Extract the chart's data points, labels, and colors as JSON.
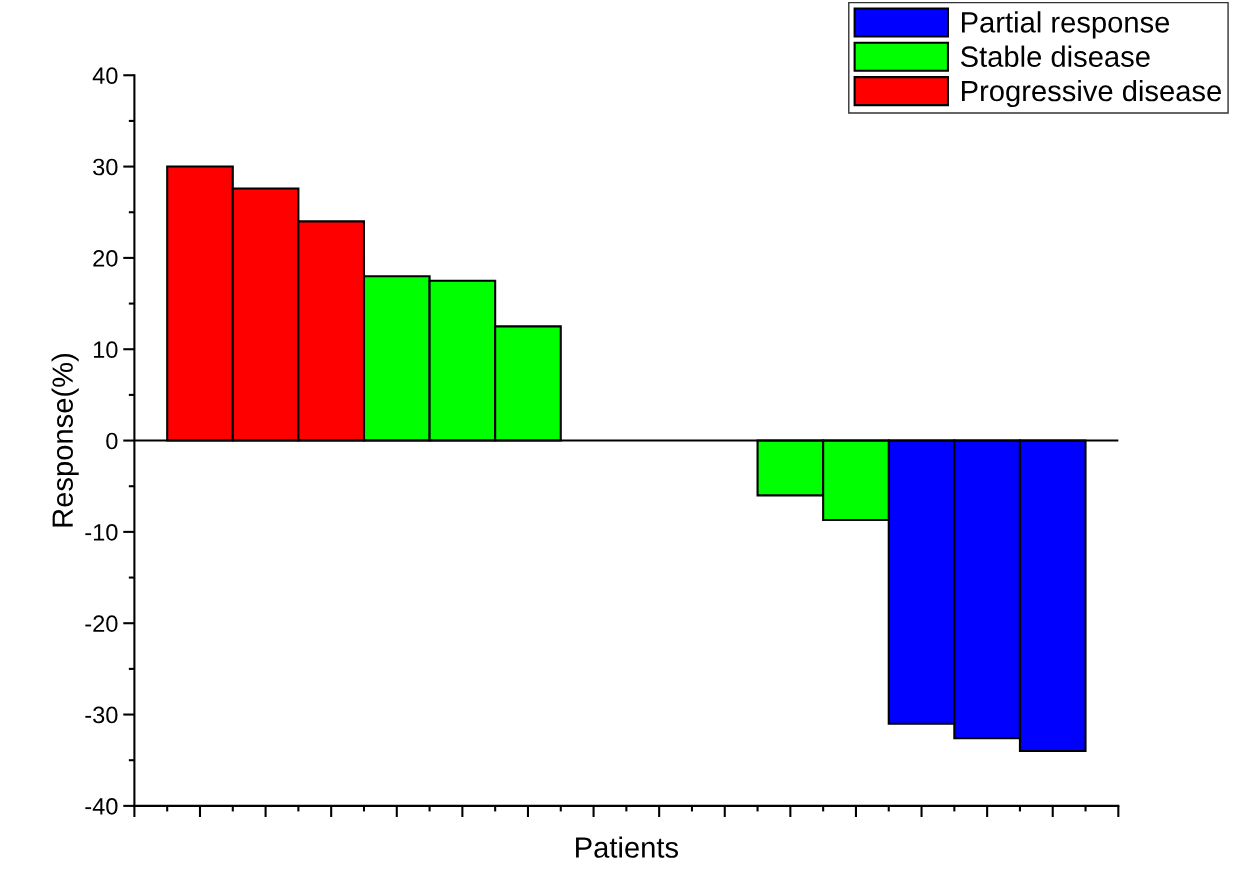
{
  "chart_data": {
    "type": "bar",
    "xlabel": "Patients",
    "ylabel": "Response(%)",
    "categories": [
      null,
      null,
      null,
      null,
      null,
      null,
      null,
      null,
      null,
      null,
      null,
      null,
      null,
      null
    ],
    "series": [
      {
        "name": "Partial response",
        "color": "#0000ff",
        "values": [
          null,
          null,
          null,
          null,
          null,
          null,
          null,
          null,
          null,
          null,
          null,
          -31,
          -32.6,
          -34
        ]
      },
      {
        "name": "Stable disease",
        "color": "#00ff00",
        "values": [
          null,
          null,
          null,
          18,
          17.5,
          12.5,
          null,
          null,
          null,
          -6,
          -8.7,
          null,
          null,
          null
        ]
      },
      {
        "name": "Progressive disease",
        "color": "#ff0000",
        "values": [
          30,
          27.6,
          24,
          null,
          null,
          null,
          null,
          null,
          null,
          null,
          null,
          null,
          null,
          null
        ]
      }
    ],
    "ylim": [
      -40,
      40
    ],
    "yticks": [
      -40,
      -30,
      -20,
      -10,
      0,
      10,
      20,
      30,
      40
    ],
    "ref_lines": [
      {
        "axis": "y",
        "value": 0,
        "color": "#000000"
      }
    ],
    "tick_labels": "y",
    "legend": "top right",
    "grid": false
  }
}
